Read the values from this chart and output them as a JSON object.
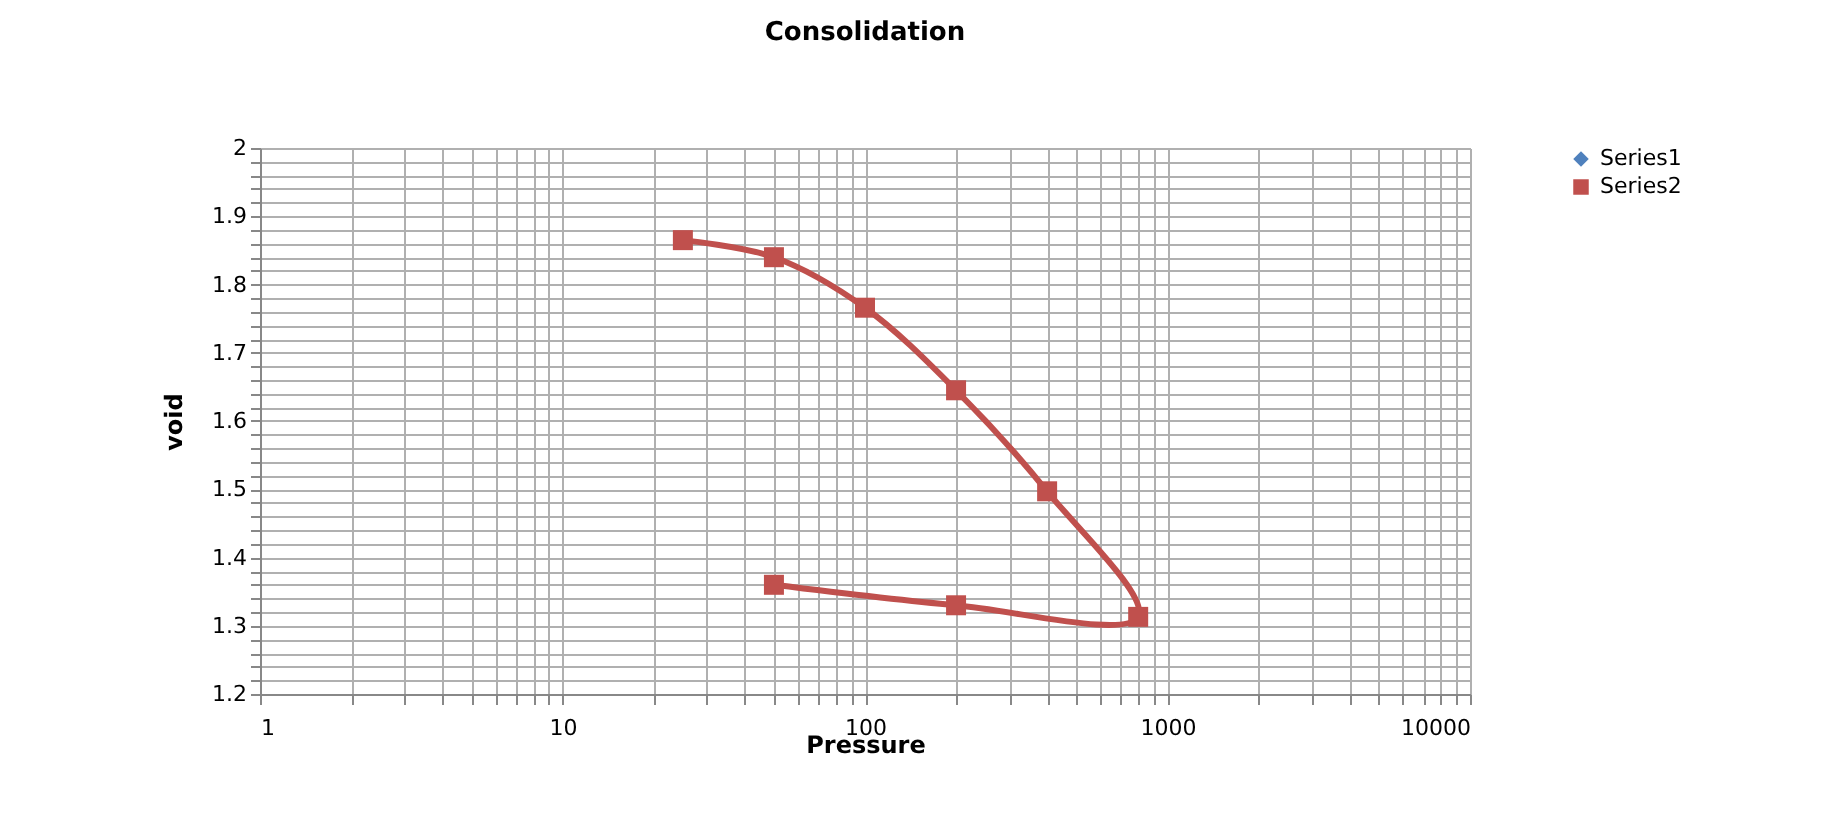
{
  "chart_data": {
    "type": "line",
    "title": "Consolidation",
    "xlabel": "Pressure",
    "ylabel": "void",
    "log": "x",
    "xlim": [
      1,
      10000
    ],
    "xticks": [
      1,
      {
        "value": 2,
        "label": null
      },
      {
        "value": 3,
        "label": null
      },
      {
        "value": 4,
        "label": null
      },
      {
        "value": 5,
        "label": null
      },
      {
        "value": 6,
        "label": null
      },
      {
        "value": 7,
        "label": null
      },
      {
        "value": 8,
        "label": null
      },
      {
        "value": 9,
        "label": null
      },
      10,
      {
        "value": 20,
        "label": null
      },
      {
        "value": 30,
        "label": null
      },
      {
        "value": 40,
        "label": null
      },
      {
        "value": 50,
        "label": null
      },
      {
        "value": 60,
        "label": null
      },
      {
        "value": 70,
        "label": null
      },
      {
        "value": 80,
        "label": null
      },
      {
        "value": 90,
        "label": null
      },
      100,
      {
        "value": 200,
        "label": null
      },
      {
        "value": 300,
        "label": null
      },
      {
        "value": 400,
        "label": null
      },
      {
        "value": 500,
        "label": null
      },
      {
        "value": 600,
        "label": null
      },
      {
        "value": 700,
        "label": null
      },
      {
        "value": 800,
        "label": null
      },
      {
        "value": 900,
        "label": null
      },
      1000,
      {
        "value": 2000,
        "label": null
      },
      {
        "value": 3000,
        "label": null
      },
      {
        "value": 4000,
        "label": null
      },
      {
        "value": 5000,
        "label": null
      },
      {
        "value": 6000,
        "label": null
      },
      {
        "value": 7000,
        "label": null
      },
      {
        "value": 8000,
        "label": null
      },
      {
        "value": 9000,
        "label": null
      },
      10000
    ],
    "ylim": [
      1.2,
      2
    ],
    "yticks": [
      1.2,
      {
        "value": 1.22,
        "label": null
      },
      {
        "value": 1.24,
        "label": null
      },
      {
        "value": 1.26,
        "label": null
      },
      {
        "value": 1.28,
        "label": null
      },
      1.3,
      {
        "value": 1.32,
        "label": null
      },
      {
        "value": 1.34,
        "label": null
      },
      {
        "value": 1.36,
        "label": null
      },
      {
        "value": 1.38,
        "label": null
      },
      1.4,
      {
        "value": 1.42,
        "label": null
      },
      {
        "value": 1.44,
        "label": null
      },
      {
        "value": 1.46,
        "label": null
      },
      {
        "value": 1.48,
        "label": null
      },
      1.5,
      {
        "value": 1.52,
        "label": null
      },
      {
        "value": 1.54,
        "label": null
      },
      {
        "value": 1.56,
        "label": null
      },
      {
        "value": 1.58,
        "label": null
      },
      1.6,
      {
        "value": 1.62,
        "label": null
      },
      {
        "value": 1.64,
        "label": null
      },
      {
        "value": 1.66,
        "label": null
      },
      {
        "value": 1.68,
        "label": null
      },
      1.7,
      {
        "value": 1.72,
        "label": null
      },
      {
        "value": 1.74,
        "label": null
      },
      {
        "value": 1.76,
        "label": null
      },
      {
        "value": 1.78,
        "label": null
      },
      1.8,
      {
        "value": 1.82,
        "label": null
      },
      {
        "value": 1.84,
        "label": null
      },
      {
        "value": 1.86,
        "label": null
      },
      {
        "value": 1.88,
        "label": null
      },
      1.9,
      {
        "value": 1.92,
        "label": null
      },
      {
        "value": 1.94,
        "label": null
      },
      {
        "value": 1.96,
        "label": null
      },
      {
        "value": 1.98,
        "label": null
      },
      2
    ],
    "grid": true,
    "legend": "right",
    "series": [
      {
        "name": "Series1",
        "color": "#4f81bd",
        "marker": "diamond"
      },
      {
        "name": "Series2",
        "color": "#c0504d",
        "marker": "square",
        "x": [
          25,
          50,
          100,
          200,
          400,
          800,
          200,
          50
        ],
        "values": [
          1.865,
          1.84,
          1.766,
          1.645,
          1.497,
          1.313,
          1.33,
          1.36
        ]
      }
    ]
  }
}
